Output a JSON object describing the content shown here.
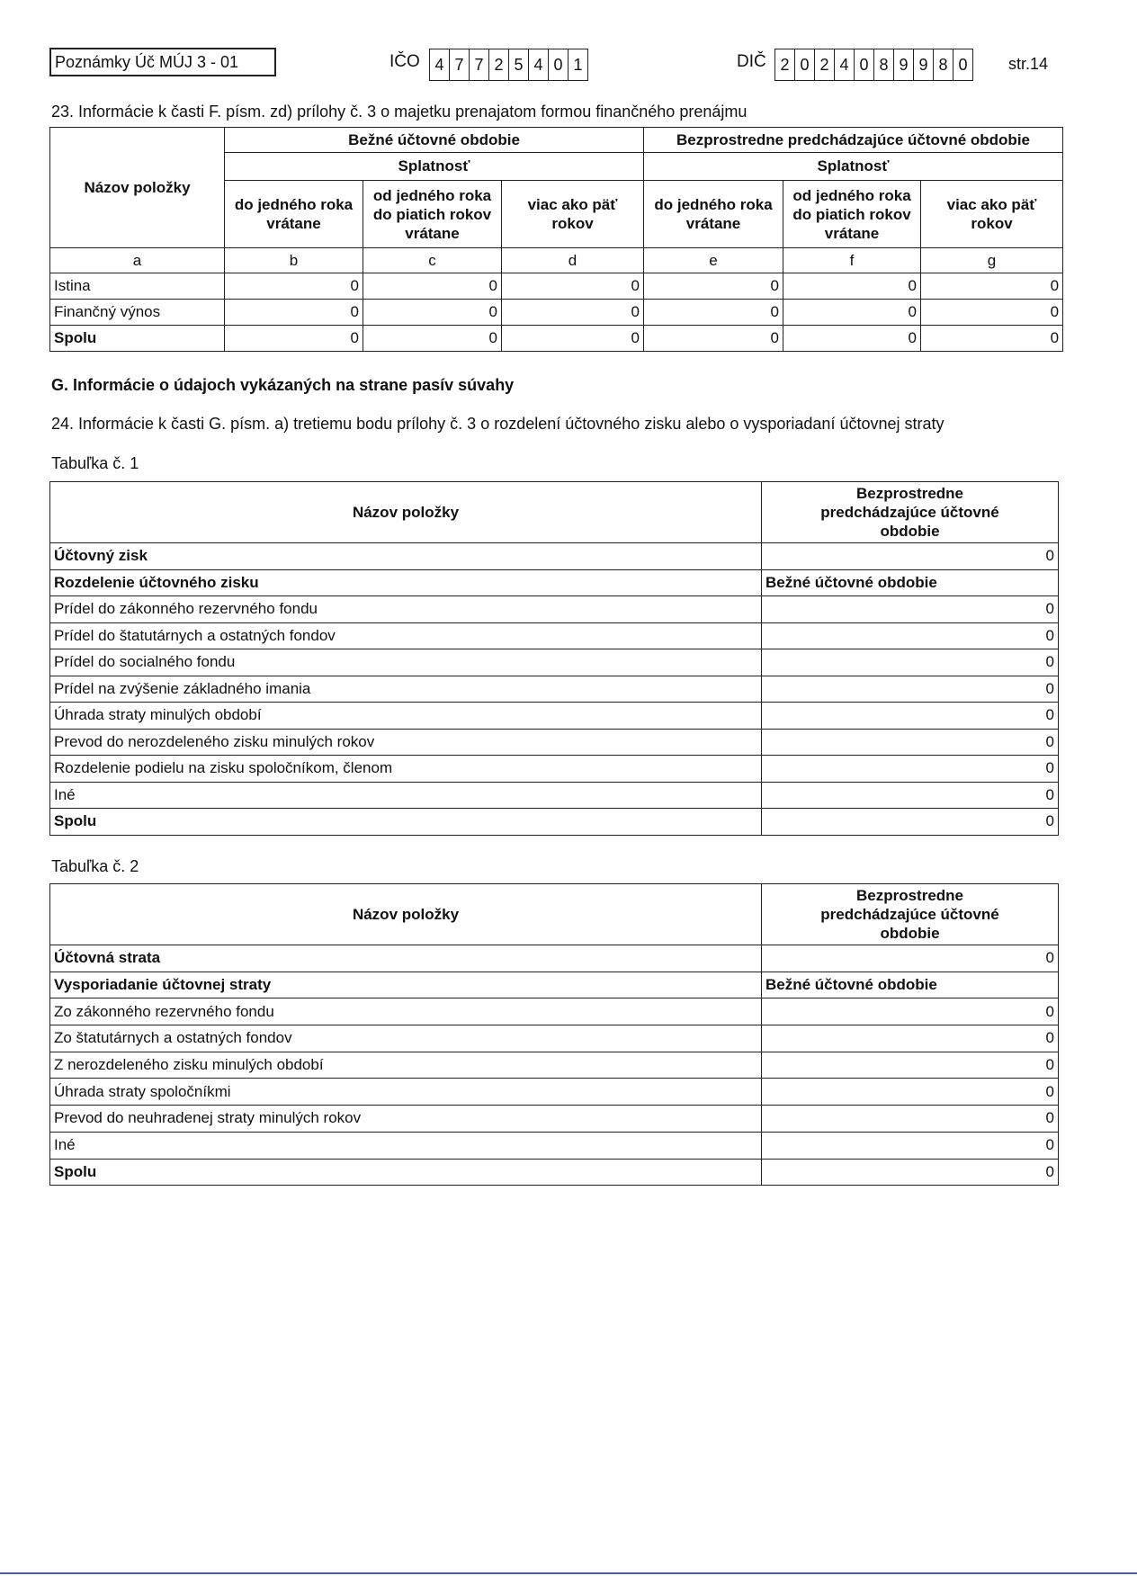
{
  "header": {
    "form_label": "Poznámky Úč MÚJ 3 - 01",
    "ico_label": "IČO",
    "ico_digits": [
      "4",
      "7",
      "7",
      "2",
      "5",
      "4",
      "0",
      "1"
    ],
    "dic_label": "DIČ",
    "dic_digits": [
      "2",
      "0",
      "2",
      "4",
      "0",
      "8",
      "9",
      "9",
      "8",
      "0"
    ],
    "page": "str.14"
  },
  "section23": {
    "title": "23. Informácie k časti F. písm. zd) prílohy č. 3 o majetku prenajatom formou finančného prenájmu",
    "col_name": "Názov položky",
    "current_period": "Bežné účtovné obdobie",
    "previous_period": "Bezprostredne predchádzajúce účtovné obdobie",
    "maturity": "Splatnosť",
    "sub_cols": [
      "do jedného roka vrátane",
      "od jedného roka do piatich rokov vrátane",
      "viac ako päť rokov"
    ],
    "letters": [
      "a",
      "b",
      "c",
      "d",
      "e",
      "f",
      "g"
    ],
    "rows": [
      {
        "name": "Istina",
        "values": [
          "0",
          "0",
          "0",
          "0",
          "0",
          "0"
        ]
      },
      {
        "name": "Finančný výnos",
        "values": [
          "0",
          "0",
          "0",
          "0",
          "0",
          "0"
        ]
      },
      {
        "name": "Spolu",
        "values": [
          "0",
          "0",
          "0",
          "0",
          "0",
          "0"
        ]
      }
    ]
  },
  "sectionG": {
    "title": "G. Informácie o údajoch vykázaných na strane pasív súvahy",
    "item24": "24. Informácie k časti G. písm. a) tretiemu bodu prílohy č. 3 o rozdelení účtovného zisku alebo o vysporiadaní účtovnej straty"
  },
  "table1": {
    "caption": "Tabuľka č. 1",
    "col_name": "Názov položky",
    "col_prev": "Bezprostredne predchádzajúce účtovné obdobie",
    "first_row": {
      "name": "Účtovný zisk",
      "value": "0"
    },
    "section_row": {
      "name": "Rozdelenie účtovného zisku",
      "value": "Bežné účtovné obdobie"
    },
    "rows": [
      {
        "name": "Prídel do zákonného rezervného fondu",
        "value": "0"
      },
      {
        "name": "Prídel do štatutárnych a ostatných fondov",
        "value": "0"
      },
      {
        "name": "Prídel do socialného fondu",
        "value": "0"
      },
      {
        "name": "Prídel na zvýšenie základného imania",
        "value": "0"
      },
      {
        "name": "Úhrada straty minulých období",
        "value": "0"
      },
      {
        "name": "Prevod do nerozdeleného zisku minulých rokov",
        "value": "0"
      },
      {
        "name": "Rozdelenie podielu na zisku spoločníkom, členom",
        "value": "0"
      },
      {
        "name": "Iné",
        "value": "0"
      }
    ],
    "total": {
      "name": "Spolu",
      "value": "0"
    }
  },
  "table2": {
    "caption": "Tabuľka č. 2",
    "col_name": "Názov položky",
    "col_prev": "Bezprostredne predchádzajúce účtovné obdobie",
    "first_row": {
      "name": "Účtovná strata",
      "value": "0"
    },
    "section_row": {
      "name": "Vysporiadanie účtovnej straty",
      "value": "Bežné účtovné obdobie"
    },
    "rows": [
      {
        "name": "Zo zákonného rezervného fondu",
        "value": "0"
      },
      {
        "name": "Zo štatutárnych a ostatných fondov",
        "value": "0"
      },
      {
        "name": "Z nerozdeleného zisku minulých období",
        "value": "0"
      },
      {
        "name": "Úhrada straty spoločníkmi",
        "value": "0"
      },
      {
        "name": "Prevod do neuhradenej straty minulých rokov",
        "value": "0"
      },
      {
        "name": "Iné",
        "value": "0"
      }
    ],
    "total": {
      "name": "Spolu",
      "value": "0"
    }
  }
}
